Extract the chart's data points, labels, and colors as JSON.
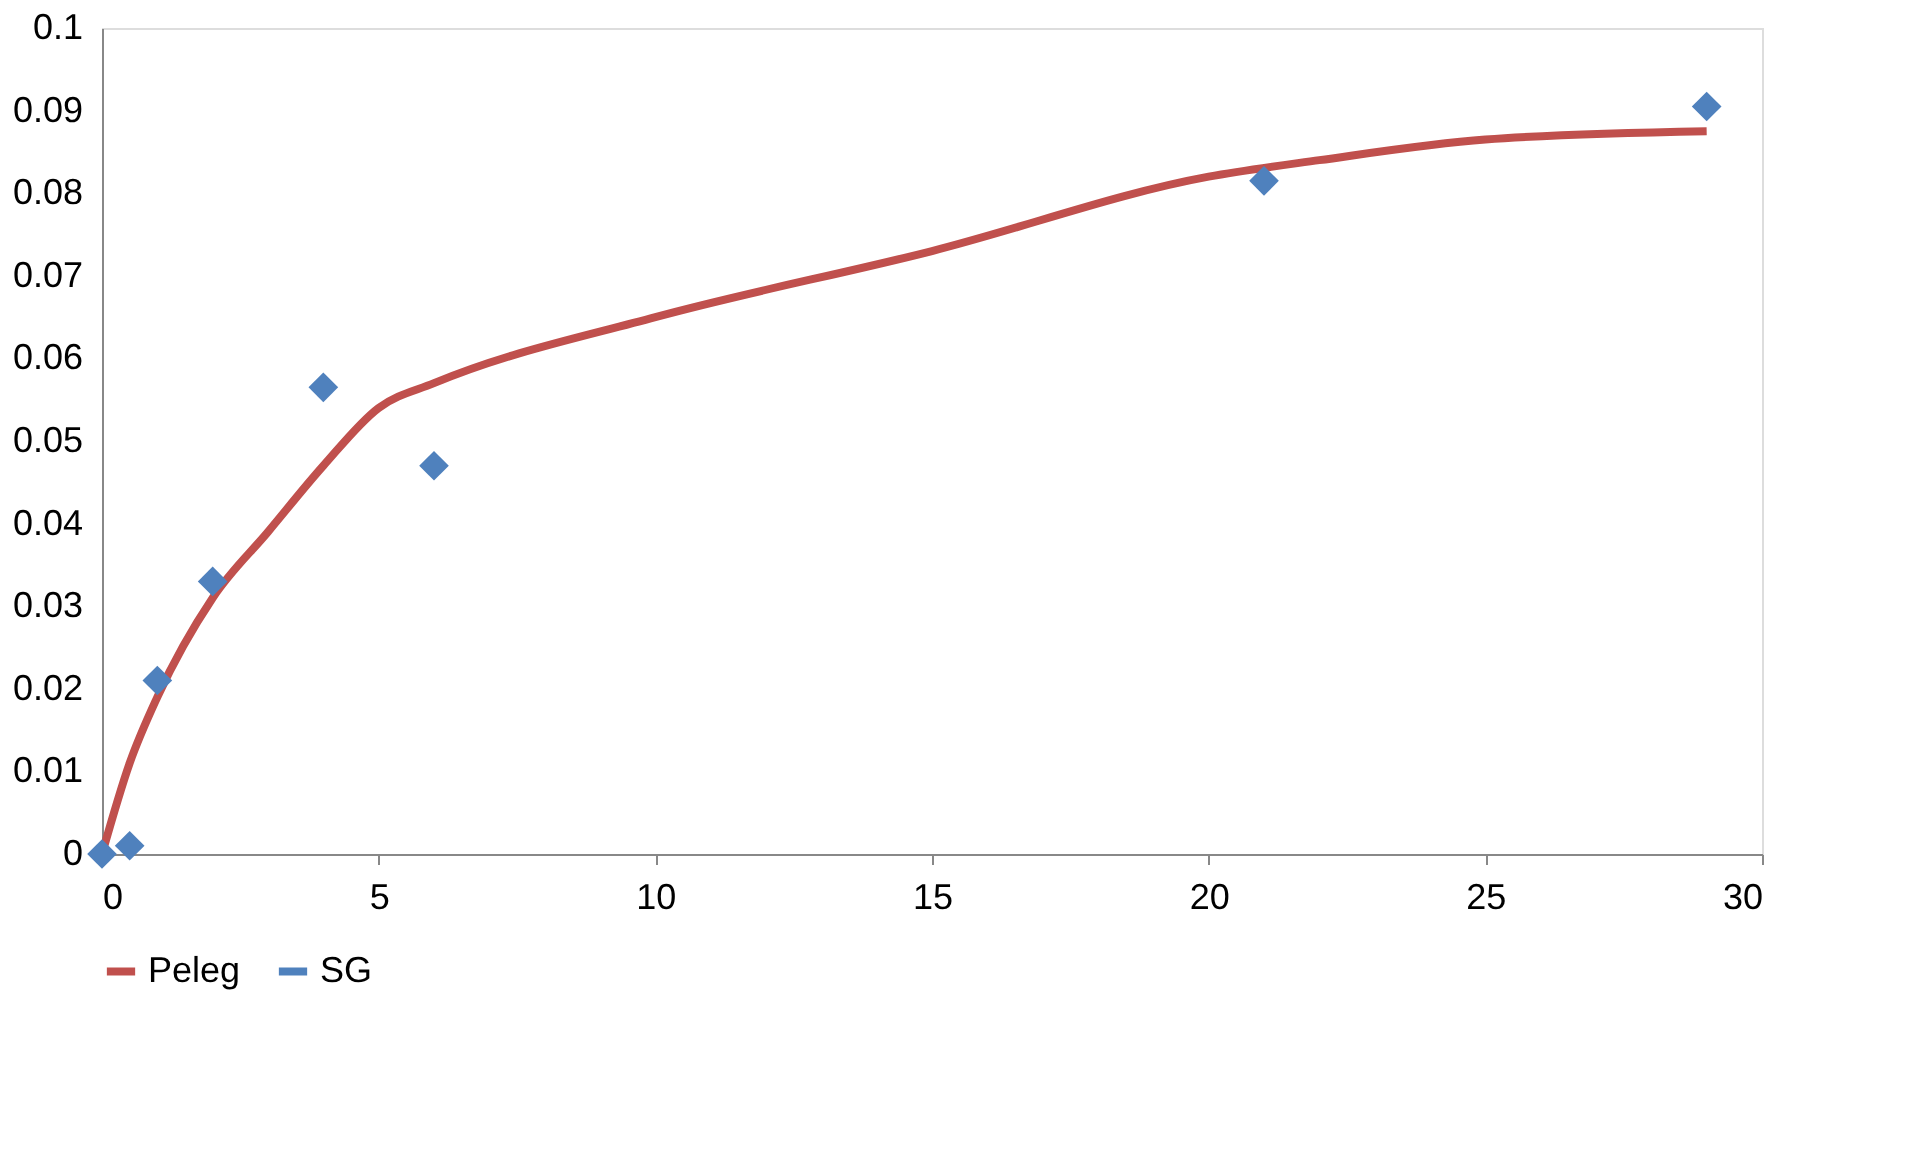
{
  "chart_data": {
    "type": "scatter",
    "xlim": [
      0,
      30
    ],
    "xticks": [
      0,
      5,
      10,
      15,
      20,
      25,
      30
    ],
    "ylim": [
      0,
      0.1
    ],
    "yticks": [
      0,
      0.01,
      0.02,
      0.03,
      0.04,
      0.05,
      0.06,
      0.07,
      0.08,
      0.09,
      0.1
    ],
    "grid": false,
    "legend": "bottom",
    "series": [
      {
        "name": "Peleg",
        "type": "line",
        "color": "#c0504d",
        "marker": "none",
        "line_style": "solid",
        "x": [
          0,
          0.5,
          1,
          2,
          3,
          4,
          5,
          6,
          10,
          15,
          20,
          22,
          25,
          29
        ],
        "values": [
          0,
          0.011,
          0.019,
          0.031,
          0.039,
          0.047,
          0.054,
          0.057,
          0.065,
          0.073,
          0.082,
          0.084,
          0.0865,
          0.0875
        ]
      },
      {
        "name": "SG",
        "color": "#4f81bd",
        "marker": "diamond",
        "x": [
          0,
          0.5,
          1,
          2,
          4,
          6,
          21,
          29
        ],
        "values": [
          0,
          0.001,
          0.021,
          0.033,
          0.0565,
          0.047,
          0.0815,
          0.0905
        ]
      }
    ]
  }
}
